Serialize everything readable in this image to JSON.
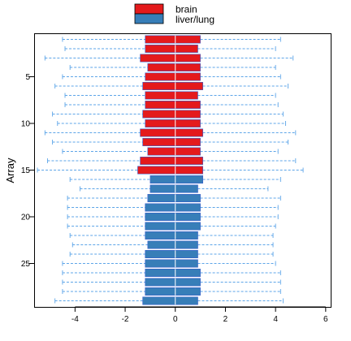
{
  "chart_data": {
    "type": "boxplot",
    "title": "",
    "xlabel": "",
    "ylabel": "Array",
    "orientation": "horizontal",
    "xlim": [
      -5.6,
      6.2
    ],
    "x_ticks": [
      -4,
      -2,
      0,
      2,
      4,
      6
    ],
    "y_ticks": [
      5,
      10,
      15,
      20,
      25
    ],
    "grid": false,
    "legend_position": "top-center",
    "series": [
      {
        "name": "brain",
        "color": "#E41A1C",
        "arrays": [
          1,
          15
        ]
      },
      {
        "name": "liver/lung",
        "color": "#377EB8",
        "arrays": [
          16,
          29
        ]
      }
    ],
    "whisker_color": "#5DA5E8",
    "box_border_color": "#3A5FCD",
    "median_color": "#ffffff",
    "boxes": [
      {
        "array": 1,
        "group": "brain",
        "whisker_low": -4.5,
        "q1": -1.2,
        "median": 0.0,
        "q3": 1.0,
        "whisker_high": 4.2
      },
      {
        "array": 2,
        "group": "brain",
        "whisker_low": -4.4,
        "q1": -1.2,
        "median": 0.0,
        "q3": 0.9,
        "whisker_high": 4.0
      },
      {
        "array": 3,
        "group": "brain",
        "whisker_low": -5.2,
        "q1": -1.4,
        "median": 0.0,
        "q3": 1.0,
        "whisker_high": 4.7
      },
      {
        "array": 4,
        "group": "brain",
        "whisker_low": -4.2,
        "q1": -1.1,
        "median": 0.0,
        "q3": 1.0,
        "whisker_high": 4.0
      },
      {
        "array": 5,
        "group": "brain",
        "whisker_low": -4.5,
        "q1": -1.2,
        "median": 0.0,
        "q3": 1.0,
        "whisker_high": 4.2
      },
      {
        "array": 6,
        "group": "brain",
        "whisker_low": -4.8,
        "q1": -1.3,
        "median": 0.0,
        "q3": 1.1,
        "whisker_high": 4.5
      },
      {
        "array": 7,
        "group": "brain",
        "whisker_low": -4.4,
        "q1": -1.2,
        "median": 0.0,
        "q3": 0.9,
        "whisker_high": 4.0
      },
      {
        "array": 8,
        "group": "brain",
        "whisker_low": -4.4,
        "q1": -1.2,
        "median": 0.0,
        "q3": 1.0,
        "whisker_high": 4.1
      },
      {
        "array": 9,
        "group": "brain",
        "whisker_low": -4.9,
        "q1": -1.3,
        "median": 0.0,
        "q3": 1.0,
        "whisker_high": 4.3
      },
      {
        "array": 10,
        "group": "brain",
        "whisker_low": -4.7,
        "q1": -1.2,
        "median": 0.0,
        "q3": 1.0,
        "whisker_high": 4.4
      },
      {
        "array": 11,
        "group": "brain",
        "whisker_low": -5.2,
        "q1": -1.4,
        "median": 0.0,
        "q3": 1.1,
        "whisker_high": 4.8
      },
      {
        "array": 12,
        "group": "brain",
        "whisker_low": -4.9,
        "q1": -1.3,
        "median": 0.0,
        "q3": 1.0,
        "whisker_high": 4.5
      },
      {
        "array": 13,
        "group": "brain",
        "whisker_low": -4.5,
        "q1": -1.1,
        "median": 0.0,
        "q3": 1.0,
        "whisker_high": 4.1
      },
      {
        "array": 14,
        "group": "brain",
        "whisker_low": -5.1,
        "q1": -1.4,
        "median": 0.0,
        "q3": 1.1,
        "whisker_high": 4.8
      },
      {
        "array": 15,
        "group": "brain",
        "whisker_low": -5.5,
        "q1": -1.5,
        "median": 0.0,
        "q3": 1.1,
        "whisker_high": 5.1
      },
      {
        "array": 16,
        "group": "liver/lung",
        "whisker_low": -4.2,
        "q1": -1.0,
        "median": 0.0,
        "q3": 1.1,
        "whisker_high": 4.2
      },
      {
        "array": 17,
        "group": "liver/lung",
        "whisker_low": -3.8,
        "q1": -1.0,
        "median": 0.0,
        "q3": 0.9,
        "whisker_high": 3.7
      },
      {
        "array": 18,
        "group": "liver/lung",
        "whisker_low": -4.3,
        "q1": -1.1,
        "median": 0.0,
        "q3": 1.0,
        "whisker_high": 4.2
      },
      {
        "array": 19,
        "group": "liver/lung",
        "whisker_low": -4.3,
        "q1": -1.2,
        "median": 0.0,
        "q3": 1.0,
        "whisker_high": 4.1
      },
      {
        "array": 20,
        "group": "liver/lung",
        "whisker_low": -4.3,
        "q1": -1.2,
        "median": 0.0,
        "q3": 1.0,
        "whisker_high": 4.1
      },
      {
        "array": 21,
        "group": "liver/lung",
        "whisker_low": -4.3,
        "q1": -1.2,
        "median": 0.0,
        "q3": 1.0,
        "whisker_high": 4.0
      },
      {
        "array": 22,
        "group": "liver/lung",
        "whisker_low": -4.2,
        "q1": -1.2,
        "median": 0.0,
        "q3": 0.9,
        "whisker_high": 3.9
      },
      {
        "array": 23,
        "group": "liver/lung",
        "whisker_low": -4.1,
        "q1": -1.1,
        "median": 0.0,
        "q3": 0.9,
        "whisker_high": 3.9
      },
      {
        "array": 24,
        "group": "liver/lung",
        "whisker_low": -4.2,
        "q1": -1.2,
        "median": 0.0,
        "q3": 0.9,
        "whisker_high": 3.9
      },
      {
        "array": 25,
        "group": "liver/lung",
        "whisker_low": -4.5,
        "q1": -1.2,
        "median": 0.0,
        "q3": 0.9,
        "whisker_high": 4.0
      },
      {
        "array": 26,
        "group": "liver/lung",
        "whisker_low": -4.5,
        "q1": -1.2,
        "median": 0.0,
        "q3": 1.0,
        "whisker_high": 4.2
      },
      {
        "array": 27,
        "group": "liver/lung",
        "whisker_low": -4.5,
        "q1": -1.2,
        "median": 0.0,
        "q3": 1.0,
        "whisker_high": 4.2
      },
      {
        "array": 28,
        "group": "liver/lung",
        "whisker_low": -4.5,
        "q1": -1.2,
        "median": 0.0,
        "q3": 1.0,
        "whisker_high": 4.2
      },
      {
        "array": 29,
        "group": "liver/lung",
        "whisker_low": -4.8,
        "q1": -1.3,
        "median": 0.0,
        "q3": 0.9,
        "whisker_high": 4.3
      }
    ]
  }
}
